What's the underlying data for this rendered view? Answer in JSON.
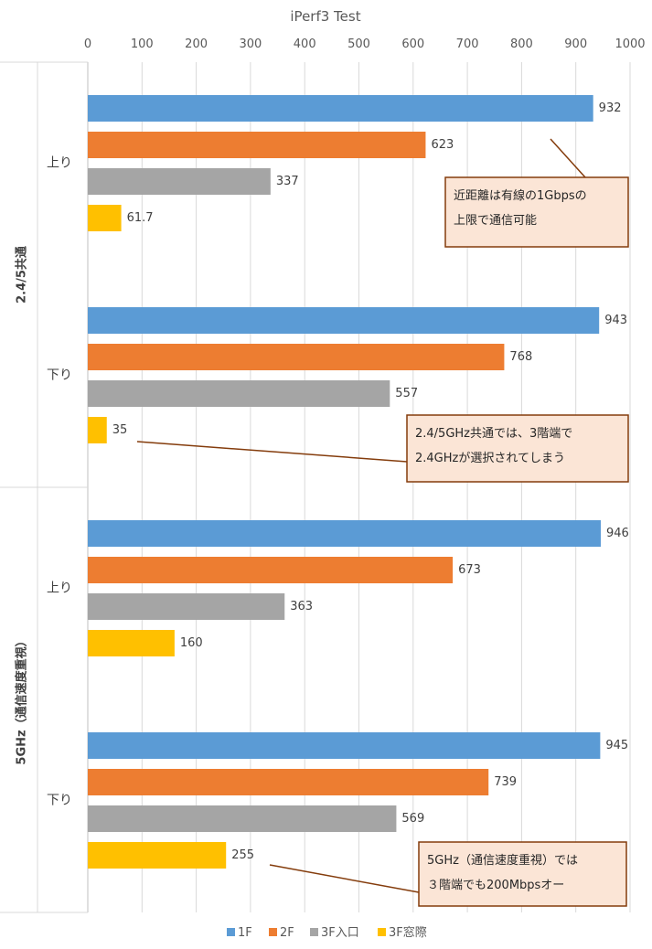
{
  "chart_data": {
    "type": "bar",
    "orientation": "horizontal",
    "title": "iPerf3 Test",
    "xlim": [
      0,
      1000
    ],
    "x_ticks": [
      "0",
      "100",
      "200",
      "300",
      "400",
      "500",
      "600",
      "700",
      "800",
      "900",
      "1000"
    ],
    "x_axis_position": "top",
    "grid": true,
    "legend_position": "bottom",
    "series": [
      {
        "name": "1F",
        "color": "#5b9bd5"
      },
      {
        "name": "2F",
        "color": "#ed7d31"
      },
      {
        "name": "3F入口",
        "color": "#a5a5a5"
      },
      {
        "name": "3F窓際",
        "color": "#ffc000"
      }
    ],
    "groups": [
      {
        "label": "2.4/5共通",
        "categories": [
          {
            "label": "上り",
            "values": [
              932,
              623,
              337,
              61.7
            ],
            "value_labels": [
              "932",
              "623",
              "337",
              "61.7"
            ]
          },
          {
            "label": "下り",
            "values": [
              943,
              768,
              557,
              35
            ],
            "value_labels": [
              "943",
              "768",
              "557",
              "35"
            ]
          }
        ]
      },
      {
        "label": "5GHz（通信速度重視）",
        "categories": [
          {
            "label": "上り",
            "values": [
              946,
              673,
              363,
              160
            ],
            "value_labels": [
              "946",
              "673",
              "363",
              "160"
            ]
          },
          {
            "label": "下り",
            "values": [
              945,
              739,
              569,
              255
            ],
            "value_labels": [
              "945",
              "739",
              "569",
              "255"
            ]
          }
        ]
      }
    ],
    "annotations": [
      {
        "lines": [
          "近距離は有線の1Gbpsの",
          "上限で通信可能"
        ]
      },
      {
        "lines": [
          "2.4/5GHz共通では、3階端で",
          "2.4GHzが選択されてしまう"
        ]
      },
      {
        "lines": [
          "5GHz（通信速度重視）では",
          "３階端でも200Mbpsオー"
        ]
      }
    ],
    "annotation_style": {
      "fill": "#fbe5d6",
      "border": "#843c0c"
    }
  }
}
